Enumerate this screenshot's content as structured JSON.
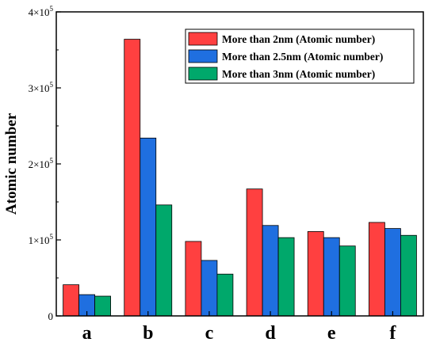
{
  "chart_data": {
    "type": "bar",
    "categories": [
      "a",
      "b",
      "c",
      "d",
      "e",
      "f"
    ],
    "series": [
      {
        "name": "More than 2nm (Atomic number)",
        "color": "#ff4040",
        "values": [
          41000,
          364000,
          98000,
          167000,
          111000,
          123000
        ]
      },
      {
        "name": "More than 2.5nm (Atomic number)",
        "color": "#1f6fe0",
        "values": [
          28000,
          234000,
          73000,
          119000,
          103000,
          115000
        ]
      },
      {
        "name": "More than 3nm (Atomic number)",
        "color": "#00a86b",
        "values": [
          26000,
          146000,
          55000,
          103000,
          92000,
          106000
        ]
      }
    ],
    "title": "",
    "xlabel": "",
    "ylabel": "Atomic number",
    "ylim": [
      0,
      400000
    ],
    "yticks": [
      {
        "value": 0,
        "mantissa": "0",
        "exponent": ""
      },
      {
        "value": 100000,
        "mantissa": "1×10",
        "exponent": "5"
      },
      {
        "value": 200000,
        "mantissa": "2×10",
        "exponent": "5"
      },
      {
        "value": 300000,
        "mantissa": "3×10",
        "exponent": "5"
      },
      {
        "value": 400000,
        "mantissa": "4×10",
        "exponent": "5"
      }
    ],
    "legend_position": "top-right",
    "grid": false
  }
}
